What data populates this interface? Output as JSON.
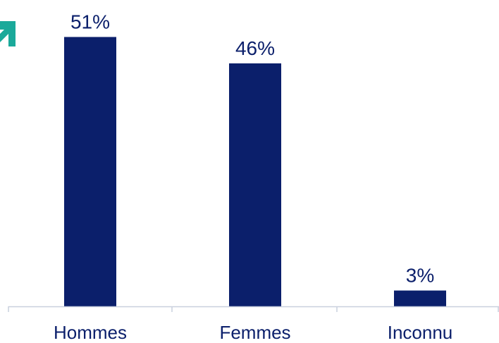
{
  "theme": {
    "bar_color": "#0b1f6b",
    "text_color": "#0b1f6b",
    "axis_color": "#c9d0de",
    "accent_color": "#1aa99a"
  },
  "icons": {
    "corner": "arrow-up-right-icon"
  },
  "chart_data": {
    "type": "bar",
    "categories": [
      "Hommes",
      "Femmes",
      "Inconnu"
    ],
    "values": [
      51,
      46,
      3
    ],
    "data_labels": [
      "51%",
      "46%",
      "3%"
    ],
    "unit": "%",
    "title": "",
    "xlabel": "",
    "ylabel": "",
    "ylim": [
      0,
      53
    ],
    "grid": false,
    "legend": "none"
  }
}
